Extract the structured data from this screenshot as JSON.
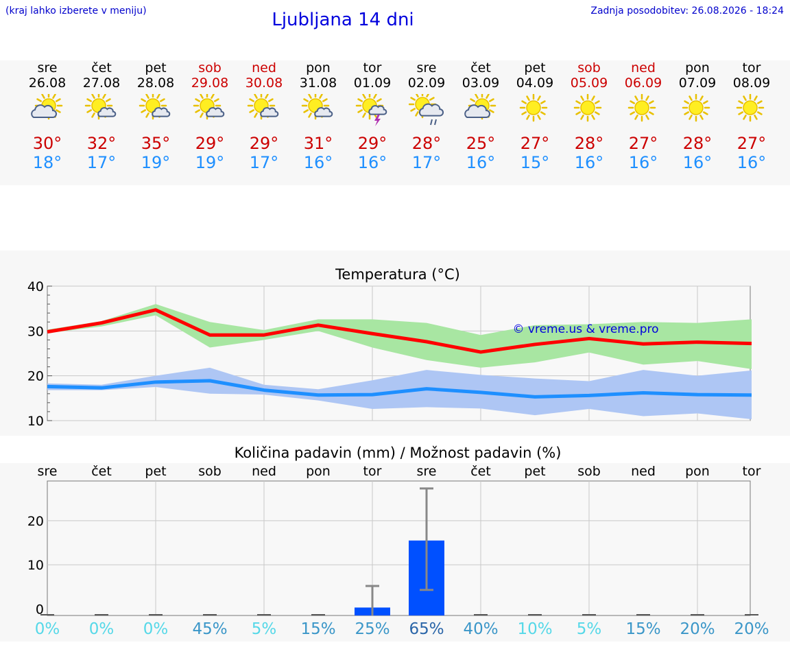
{
  "header": {
    "note": "(kraj lahko izberete v meniju)",
    "title": "Ljubljana 14 dni",
    "updated": "Zadnja posodobitev: 26.08.2026 - 18:24"
  },
  "days": [
    {
      "name": "sre",
      "date": "26.08",
      "icon": "sun-cloud-icon",
      "max": "30°",
      "min": "18°",
      "weekend": false
    },
    {
      "name": "čet",
      "date": "27.08",
      "icon": "sun-small-cloud-icon",
      "max": "32°",
      "min": "17°",
      "weekend": false
    },
    {
      "name": "pet",
      "date": "28.08",
      "icon": "sun-small-cloud-icon",
      "max": "35°",
      "min": "19°",
      "weekend": false
    },
    {
      "name": "sob",
      "date": "29.08",
      "icon": "sun-small-cloud-icon",
      "max": "29°",
      "min": "19°",
      "weekend": true
    },
    {
      "name": "ned",
      "date": "30.08",
      "icon": "sun-small-cloud-icon",
      "max": "29°",
      "min": "17°",
      "weekend": true
    },
    {
      "name": "pon",
      "date": "31.08",
      "icon": "sun-small-cloud-icon",
      "max": "31°",
      "min": "16°",
      "weekend": false
    },
    {
      "name": "tor",
      "date": "01.09",
      "icon": "sun-thunder-icon",
      "max": "29°",
      "min": "16°",
      "weekend": false
    },
    {
      "name": "sre",
      "date": "02.09",
      "icon": "sun-rain-icon",
      "max": "28°",
      "min": "17°",
      "weekend": false
    },
    {
      "name": "čet",
      "date": "03.09",
      "icon": "sun-cloud-icon",
      "max": "25°",
      "min": "16°",
      "weekend": false
    },
    {
      "name": "pet",
      "date": "04.09",
      "icon": "sun-icon",
      "max": "27°",
      "min": "15°",
      "weekend": false
    },
    {
      "name": "sob",
      "date": "05.09",
      "icon": "sun-icon",
      "max": "28°",
      "min": "16°",
      "weekend": true
    },
    {
      "name": "ned",
      "date": "06.09",
      "icon": "sun-icon",
      "max": "27°",
      "min": "16°",
      "weekend": true
    },
    {
      "name": "pon",
      "date": "07.09",
      "icon": "sun-icon",
      "max": "28°",
      "min": "16°",
      "weekend": false
    },
    {
      "name": "tor",
      "date": "08.09",
      "icon": "sun-icon",
      "max": "27°",
      "min": "16°",
      "weekend": false
    }
  ],
  "chart_data": [
    {
      "type": "line",
      "title": "Temperatura (°C)",
      "watermark": "© vreme.us & vreme.pro",
      "ylim": [
        10,
        40
      ],
      "yticks": [
        "10",
        "20",
        "30",
        "40"
      ],
      "grid": true,
      "series": [
        {
          "values": [
            29.8,
            31.8,
            34.7,
            29.1,
            29.1,
            31.3,
            29.4,
            27.6,
            25.3,
            27.0,
            28.3,
            27.1,
            27.5,
            27.2
          ],
          "band_low": [
            29.5,
            31.0,
            33.5,
            26.3,
            28.0,
            30.0,
            26.3,
            23.5,
            21.8,
            23.0,
            25.2,
            22.5,
            23.3,
            21.5
          ],
          "band_high": [
            30.3,
            32.2,
            36.0,
            32.0,
            30.2,
            32.6,
            32.6,
            31.8,
            29.1,
            31.3,
            31.5,
            32.0,
            31.8,
            32.6
          ],
          "color": "#ff0000",
          "band_color": "#a8e6a2"
        },
        {
          "values": [
            17.6,
            17.3,
            18.6,
            18.9,
            16.8,
            15.7,
            15.8,
            17.1,
            16.3,
            15.3,
            15.6,
            16.2,
            15.8,
            15.7
          ],
          "band_low": [
            16.8,
            16.8,
            17.5,
            16.0,
            15.8,
            14.5,
            12.6,
            13.0,
            12.7,
            11.2,
            12.6,
            11.0,
            11.6,
            10.3
          ],
          "band_high": [
            18.3,
            18.0,
            20.0,
            21.8,
            18.0,
            17.0,
            19.0,
            21.3,
            20.2,
            19.4,
            18.8,
            21.3,
            20.0,
            21.2
          ],
          "color": "#1e8fff",
          "band_color": "#aec6f4"
        }
      ]
    },
    {
      "type": "bar",
      "title": "Količina padavin (mm) / Možnost padavin (%)",
      "categories": [
        "sre",
        "čet",
        "pet",
        "sob",
        "ned",
        "pon",
        "tor",
        "sre",
        "čet",
        "pet",
        "sob",
        "ned",
        "pon",
        "tor"
      ],
      "values": [
        0,
        0,
        0,
        0,
        0,
        0,
        0.3,
        15.5,
        0,
        0,
        0,
        0,
        0,
        0
      ],
      "error_high": [
        0,
        0,
        0,
        0,
        0,
        0,
        5.2,
        27.3,
        0,
        0,
        0,
        0,
        0,
        0
      ],
      "error_low": [
        0,
        0,
        0,
        0,
        0,
        0,
        0,
        4.3,
        0,
        0,
        0,
        0,
        0,
        0
      ],
      "ylim": [
        -1.5,
        29
      ],
      "yticks": [
        "0",
        "10",
        "20"
      ],
      "grid": true,
      "bar_color": "#0050ff",
      "probability": [
        "0%",
        "0%",
        "0%",
        "45%",
        "5%",
        "15%",
        "25%",
        "65%",
        "40%",
        "10%",
        "5%",
        "15%",
        "20%",
        "20%"
      ],
      "probability_colors": [
        "#55d8e8",
        "#55d8e8",
        "#55d8e8",
        "#3a96c8",
        "#55d8e8",
        "#3a96c8",
        "#3a96c8",
        "#2a65a8",
        "#3a96c8",
        "#55d8e8",
        "#55d8e8",
        "#3a96c8",
        "#3a96c8",
        "#3a96c8"
      ]
    }
  ]
}
